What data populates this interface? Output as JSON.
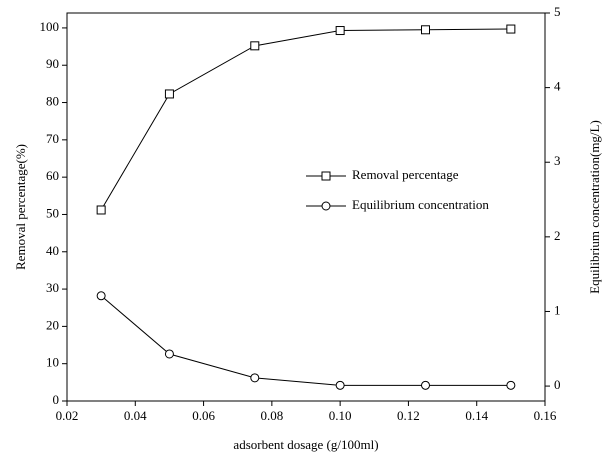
{
  "chart_data": {
    "type": "line",
    "x_label": "adsorbent dosage (g/100ml)",
    "y_label": "Removal percentage(%)",
    "y2_label": "Equilibrium concentration(mg/L)",
    "x": [
      0.03,
      0.05,
      0.075,
      0.1,
      0.125,
      0.15
    ],
    "series": [
      {
        "name": "Removal percentage",
        "color": "#000000",
        "marker": "square",
        "values": [
          51.2,
          82.3,
          95.2,
          99.3,
          99.5,
          99.7
        ]
      },
      {
        "name": "Equilibrium concentration",
        "color": "#000000",
        "marker": "circle",
        "axis": "y2",
        "values": [
          1.21,
          0.43,
          0.11,
          0.01,
          0.01,
          0.01
        ]
      }
    ],
    "xlim": [
      0.02,
      0.16
    ],
    "xticks": [
      0.02,
      0.04,
      0.06,
      0.08,
      {
        "value": 0.1,
        "label": "0.10"
      },
      0.12,
      0.14,
      0.16
    ],
    "ylim": [
      0,
      104
    ],
    "yticks": [
      0,
      10,
      20,
      30,
      40,
      50,
      60,
      70,
      80,
      90,
      100
    ],
    "y2lim": [
      -0.2,
      5
    ],
    "y2ticks": [
      0,
      1,
      2,
      3,
      4,
      5
    ],
    "grid": false
  }
}
